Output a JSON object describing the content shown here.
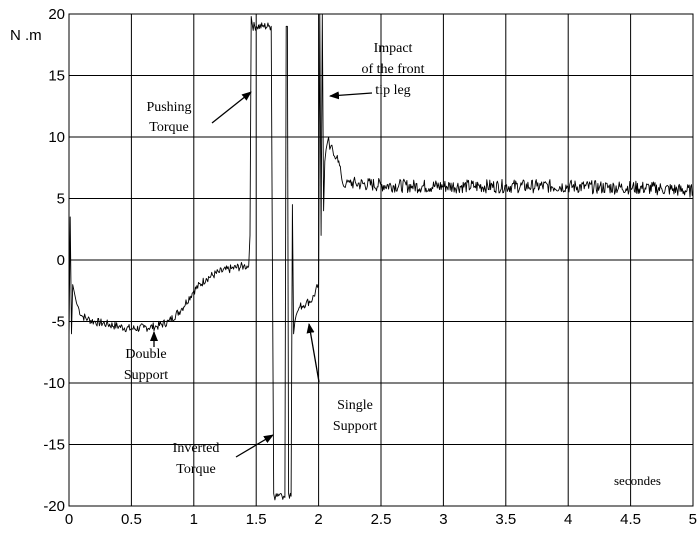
{
  "chart_data": {
    "type": "line",
    "title": "",
    "xlabel": "secondes",
    "ylabel": "N .m",
    "xlim": [
      0,
      5
    ],
    "ylim": [
      -20,
      20
    ],
    "grid": true,
    "x_ticks": [
      0,
      0.5,
      1,
      1.5,
      2,
      2.5,
      3,
      3.5,
      4,
      4.5,
      5
    ],
    "x_tick_labels": [
      "0",
      "0.5",
      "1",
      "1.5",
      "2",
      "2.5",
      "3",
      "3.5",
      "4",
      "4.5",
      "5"
    ],
    "y_ticks": [
      -20,
      -15,
      -10,
      -5,
      0,
      5,
      10,
      15,
      20
    ],
    "y_tick_labels": [
      "-20",
      "-15",
      "-10",
      "-5",
      "0",
      "5",
      "10",
      "15",
      "20"
    ],
    "series": [
      {
        "color": "#000000",
        "x": [
          0,
          0.01,
          0.02,
          0.03,
          0.04,
          0.06,
          0.08,
          0.1,
          0.15,
          0.2,
          0.3,
          0.4,
          0.5,
          0.6,
          0.7,
          0.8,
          0.9,
          1.0,
          1.1,
          1.2,
          1.3,
          1.4,
          1.44,
          1.45,
          1.46,
          1.47,
          1.5,
          1.55,
          1.6,
          1.62,
          1.63,
          1.64,
          1.65,
          1.66,
          1.7,
          1.72,
          1.73,
          1.74,
          1.75,
          1.76,
          1.78,
          1.79,
          1.8,
          1.81,
          1.82,
          1.83,
          1.85,
          1.9,
          1.95,
          2.0,
          2.01,
          2.02,
          2.03,
          2.04,
          2.05,
          2.06,
          2.07,
          2.08,
          2.09,
          2.1,
          2.12,
          2.15,
          2.18,
          2.2,
          2.22,
          2.25,
          2.3,
          2.5,
          2.75,
          3.0,
          3.25,
          3.5,
          3.75,
          4.0,
          4.25,
          4.5,
          4.75,
          5.0
        ],
        "values": [
          -6.5,
          3.5,
          -6.0,
          -2.0,
          -2.5,
          -3.5,
          -4.0,
          -4.5,
          -4.8,
          -5.0,
          -5.2,
          -5.4,
          -5.6,
          -5.5,
          -5.4,
          -5.0,
          -4.0,
          -2.5,
          -1.5,
          -1.0,
          -0.7,
          -0.5,
          -0.5,
          2.0,
          19.8,
          19.0,
          19.0,
          19.0,
          19.0,
          19.0,
          0.0,
          -19.0,
          -19.5,
          -19.0,
          -19.0,
          -19.2,
          -19.3,
          19.0,
          19.0,
          -19.0,
          -19.2,
          4.5,
          -6.0,
          -5.0,
          -4.5,
          -4.2,
          -3.8,
          -3.5,
          -3.2,
          -2.0,
          20.0,
          2.0,
          20.0,
          4.0,
          8.0,
          9.0,
          9.5,
          10.0,
          9.0,
          9.3,
          8.5,
          8.5,
          7.0,
          6.0,
          6.2,
          6.3,
          6.2,
          6.1,
          6.0,
          6.0,
          6.0,
          6.0,
          6.0,
          6.0,
          5.9,
          5.9,
          5.8,
          5.6
        ]
      }
    ],
    "annotations": [
      {
        "lines": [
          "Pushing",
          "Torque"
        ]
      },
      {
        "lines": [
          "Impact",
          "of the front",
          "tip leg"
        ]
      },
      {
        "lines": [
          "Double",
          "Support"
        ]
      },
      {
        "lines": [
          "Inverted",
          "Torque"
        ]
      },
      {
        "lines": [
          "Single",
          "Support"
        ]
      }
    ]
  }
}
